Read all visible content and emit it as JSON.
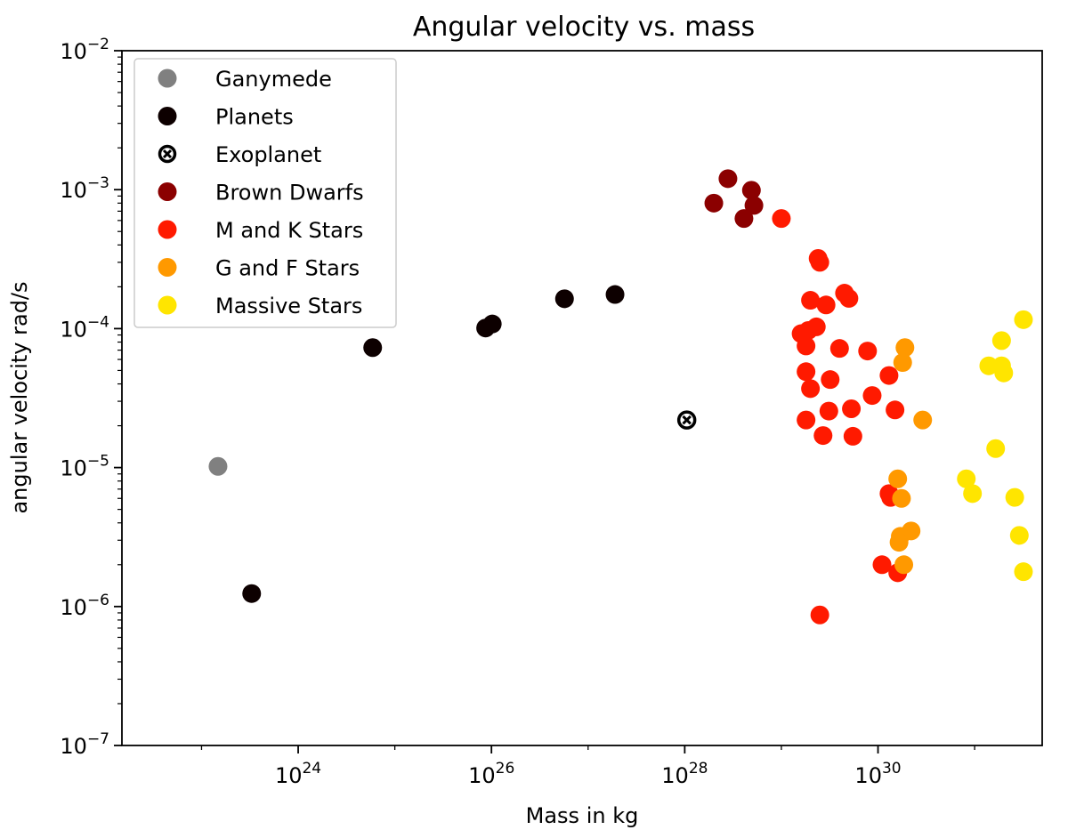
{
  "chart_data": {
    "type": "scatter",
    "title": "Angular velocity vs. mass",
    "xlabel": "Mass in kg",
    "ylabel": "angular velocity rad/s",
    "xscale": "log",
    "yscale": "log",
    "xlim": [
      1.5e+22,
      5e+31
    ],
    "ylim": [
      1e-07,
      0.01
    ],
    "xticks": [
      {
        "value": 1e+24,
        "base": "10",
        "exp": "24"
      },
      {
        "value": 1e+26,
        "base": "10",
        "exp": "26"
      },
      {
        "value": 1e+28,
        "base": "10",
        "exp": "28"
      },
      {
        "value": 1e+30,
        "base": "10",
        "exp": "30"
      }
    ],
    "yticks": [
      {
        "value": 1e-07,
        "base": "10",
        "exp": "−7"
      },
      {
        "value": 1e-06,
        "base": "10",
        "exp": "−6"
      },
      {
        "value": 1e-05,
        "base": "10",
        "exp": "−5"
      },
      {
        "value": 0.0001,
        "base": "10",
        "exp": "−4"
      },
      {
        "value": 0.001,
        "base": "10",
        "exp": "−3"
      },
      {
        "value": 0.01,
        "base": "10",
        "exp": "−2"
      }
    ],
    "legend_position": "top-left",
    "series": [
      {
        "name": "Ganymede",
        "color": "#808080",
        "marker": "circle",
        "points": [
          [
            1.48e+23,
            1.02e-05
          ]
        ]
      },
      {
        "name": "Planets",
        "color": "#0d0000",
        "marker": "circle",
        "points": [
          [
            3.3e+23,
            1.24e-06
          ],
          [
            5.9e+24,
            7.3e-05
          ],
          [
            8.7e+25,
            0.000101
          ],
          [
            1.02e+26,
            0.000108
          ],
          [
            5.7e+26,
            0.000164
          ],
          [
            1.9e+27,
            0.000176
          ]
        ]
      },
      {
        "name": "Exoplanet",
        "color": "#000000",
        "marker": "circle-x",
        "points": [
          [
            1.05e+28,
            2.2e-05
          ]
        ]
      },
      {
        "name": "Brown Dwarfs",
        "color": "#8b0000",
        "marker": "circle",
        "points": [
          [
            2.8e+28,
            0.0012
          ],
          [
            2e+28,
            0.0008
          ],
          [
            4.9e+28,
            0.00099
          ],
          [
            5.2e+28,
            0.00077
          ],
          [
            4.1e+28,
            0.00062
          ]
        ]
      },
      {
        "name": "M and K Stars",
        "color": "#ff1a00",
        "marker": "circle",
        "points": [
          [
            1e+29,
            0.00062
          ],
          [
            2.4e+29,
            0.00032
          ],
          [
            2.5e+29,
            0.0003
          ],
          [
            4.5e+29,
            0.00018
          ],
          [
            5e+29,
            0.000165
          ],
          [
            2e+29,
            0.00016
          ],
          [
            2.9e+29,
            0.000148
          ],
          [
            2.3e+29,
            0.000103
          ],
          [
            1.9e+29,
            9.7e-05
          ],
          [
            1.6e+29,
            9.2e-05
          ],
          [
            1.8e+29,
            7.5e-05
          ],
          [
            4e+29,
            7.2e-05
          ],
          [
            7.8e+29,
            6.9e-05
          ],
          [
            1.8e+29,
            4.9e-05
          ],
          [
            1.3e+30,
            4.6e-05
          ],
          [
            3.2e+29,
            4.3e-05
          ],
          [
            2e+29,
            3.7e-05
          ],
          [
            8.7e+29,
            3.3e-05
          ],
          [
            5.3e+29,
            2.65e-05
          ],
          [
            3.1e+29,
            2.55e-05
          ],
          [
            1.5e+30,
            2.6e-05
          ],
          [
            1.8e+29,
            2.2e-05
          ],
          [
            2.7e+29,
            1.7e-05
          ],
          [
            5.5e+29,
            1.68e-05
          ],
          [
            1.3e+30,
            6.5e-06
          ],
          [
            1.35e+30,
            6.1e-06
          ],
          [
            1.1e+30,
            2e-06
          ],
          [
            1.6e+30,
            1.75e-06
          ],
          [
            2.5e+29,
            8.7e-07
          ]
        ]
      },
      {
        "name": "G and F Stars",
        "color": "#ff9900",
        "marker": "circle",
        "points": [
          [
            1.9e+30,
            7.3e-05
          ],
          [
            1.8e+30,
            5.7e-05
          ],
          [
            2.9e+30,
            2.2e-05
          ],
          [
            1.6e+30,
            8.3e-06
          ],
          [
            1.75e+30,
            6e-06
          ],
          [
            2.2e+30,
            3.5e-06
          ],
          [
            1.7e+30,
            3.2e-06
          ],
          [
            1.65e+30,
            2.9e-06
          ],
          [
            1.85e+30,
            2e-06
          ]
        ]
      },
      {
        "name": "Massive Stars",
        "color": "#ffe500",
        "marker": "circle",
        "points": [
          [
            3.2e+31,
            0.000116
          ],
          [
            1.9e+31,
            8.2e-05
          ],
          [
            1.4e+31,
            5.4e-05
          ],
          [
            1.9e+31,
            5.4e-05
          ],
          [
            2e+31,
            4.8e-05
          ],
          [
            1.65e+31,
            1.37e-05
          ],
          [
            8.2e+30,
            8.3e-06
          ],
          [
            9.5e+30,
            6.5e-06
          ],
          [
            2.6e+31,
            6.1e-06
          ],
          [
            2.9e+31,
            3.25e-06
          ],
          [
            3.2e+31,
            1.78e-06
          ]
        ]
      }
    ]
  }
}
